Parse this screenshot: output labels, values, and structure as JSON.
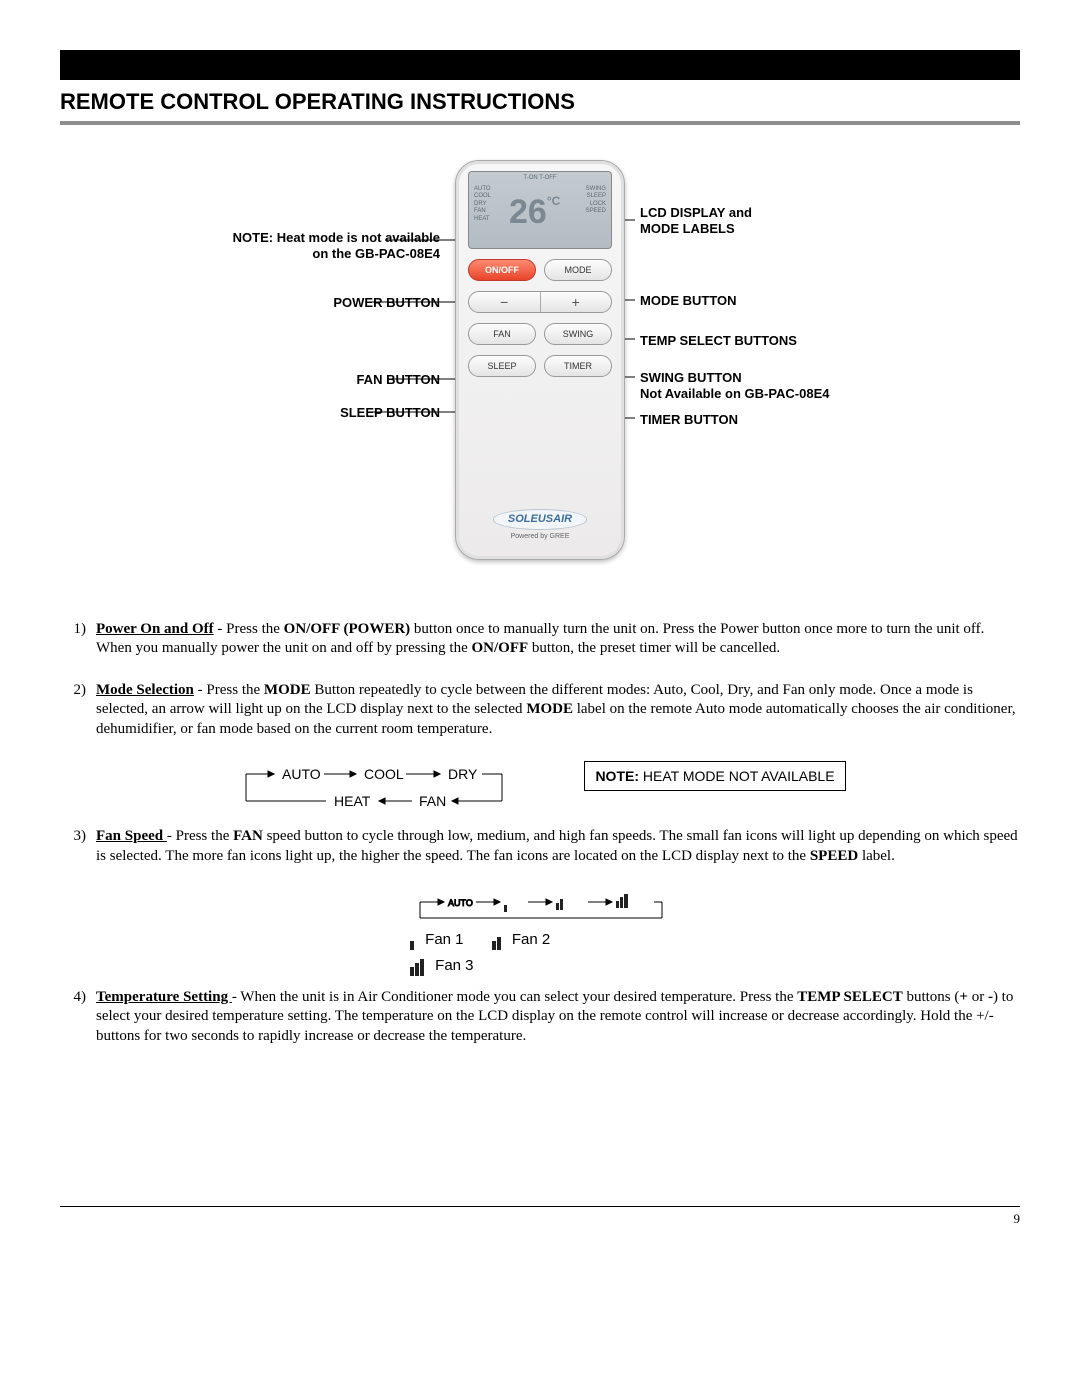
{
  "title": "REMOTE CONTROL OPERATING INSTRUCTIONS",
  "black_bar_color": "#000000",
  "gray_line_color": "#8e8e8e",
  "page_number": "9",
  "remote": {
    "lcd_top": "T-ON  T-OFF",
    "lcd_modes_left": [
      "AUTO",
      "COOL",
      "DRY",
      "FAN",
      "HEAT"
    ],
    "lcd_modes_right": [
      "SWING",
      "SLEEP",
      "LOCK",
      "SPEED"
    ],
    "lcd_temp_value": "26",
    "lcd_temp_unit": "°C",
    "buttons": {
      "onoff": "ON/OFF",
      "mode": "MODE",
      "fan": "FAN",
      "swing": "SWING",
      "sleep": "SLEEP",
      "timer": "TIMER",
      "minus": "−",
      "plus": "+"
    },
    "brand_main": "SOLEUSAIR",
    "brand_sub": "Powered by  GREE"
  },
  "callouts": {
    "heat_note_1": "NOTE: Heat mode is not  available",
    "heat_note_2": "on the GB-PAC-08E4",
    "power": "POWER BUTTON",
    "fan": "FAN BUTTON",
    "sleep": "SLEEP BUTTON",
    "lcd_1": "LCD DISPLAY and",
    "lcd_2": "MODE LABELS",
    "mode": "MODE BUTTON",
    "temp": "TEMP SELECT BUTTONS",
    "swing_1": "SWING BUTTON",
    "swing_2": "Not Available on GB-PAC-08E4",
    "timer": "TIMER BUTTON"
  },
  "instructions": [
    {
      "num": "1)",
      "title": "Power On and Off",
      "body_parts": [
        " - Press the ",
        {
          "b": "ON/OFF (POWER)"
        },
        " button once to manually turn the unit on. Press the Power button once more to turn the unit off.  When you manually power the unit on and off by pressing the ",
        {
          "b": "ON/OFF"
        },
        " button, the preset timer will be cancelled."
      ]
    },
    {
      "num": "2)",
      "title": "Mode Selection",
      "body_parts": [
        " - Press the ",
        {
          "b": "MODE"
        },
        " Button repeatedly to cycle between the different modes: Auto, Cool, Dry, and Fan only mode. Once a mode is selected, an arrow will light up on the LCD display next to the selected ",
        {
          "b": "MODE"
        },
        " label on the remote  Auto mode automatically chooses the air conditioner, dehumidifier, or fan mode based on the current room temperature."
      ]
    },
    {
      "num": "3)",
      "title": "Fan Speed ",
      "body_parts": [
        " - Press the ",
        {
          "b": "FAN"
        },
        " speed button to cycle through low, medium, and high fan speeds. The small fan icons will light up depending on which speed is selected. The more fan icons light up, the higher the speed. The fan icons are located on the LCD display next to the ",
        {
          "b": "SPEED"
        },
        " label."
      ]
    },
    {
      "num": "4)",
      "title": "Temperature Setting ",
      "body_parts": [
        " - When the unit is in Air Conditioner mode you can select your desired temperature. Press the ",
        {
          "b": "TEMP SELECT"
        },
        " buttons (",
        {
          "b": "+"
        },
        " or ",
        {
          "b": "-"
        },
        ")  to select your desired temperature setting. The temperature on the LCD display on the remote control will increase or decrease accordingly. Hold the +/- buttons for two seconds to rapidly increase or decrease the temperature."
      ]
    }
  ],
  "mode_cycle": {
    "top": [
      "AUTO",
      "COOL",
      "DRY"
    ],
    "bottom": [
      "HEAT",
      "FAN"
    ],
    "note_b": "NOTE:",
    "note_rest": " HEAT MODE NOT AVAILABLE"
  },
  "fan_cycle": {
    "top_labels": [
      "AUTO"
    ],
    "legend": [
      {
        "bars": 1,
        "label": "Fan 1"
      },
      {
        "bars": 2,
        "label": "Fan 2"
      },
      {
        "bars": 3,
        "label": "Fan 3"
      }
    ]
  }
}
